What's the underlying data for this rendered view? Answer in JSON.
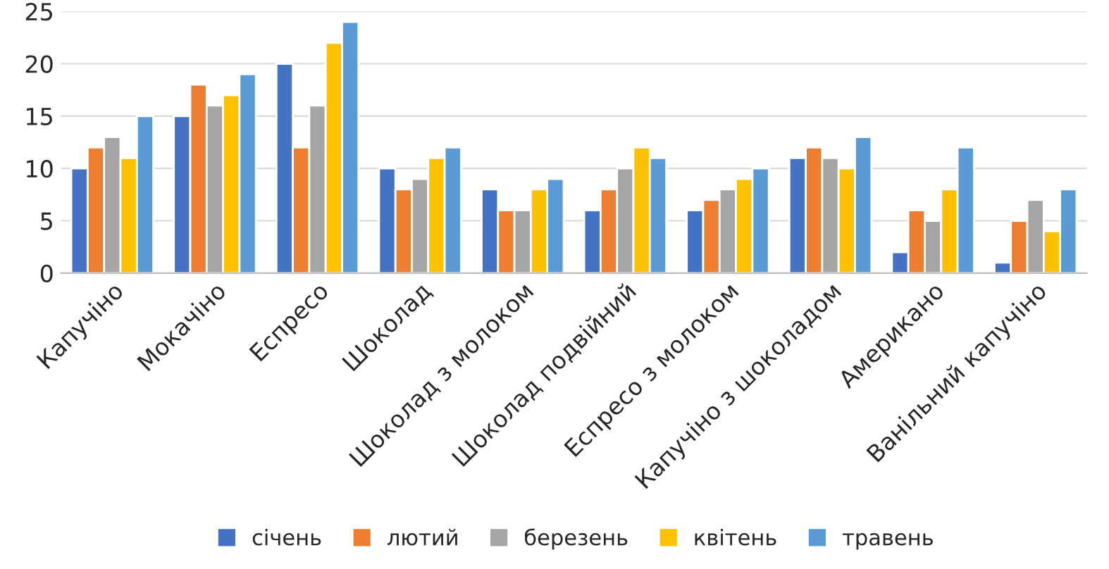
{
  "chart_data": {
    "type": "bar",
    "categories": [
      "Капучіно",
      "Мокачіно",
      "Еспресо",
      "Шоколад",
      "Шоколад з молоком",
      "Шоколад подвійний",
      "Еспресо з молоком",
      "Капучіно з шоколадом",
      "Американо",
      "Ванільний капучіно"
    ],
    "series": [
      {
        "name": "січень",
        "color": "#4472c4",
        "values": [
          10,
          15,
          20,
          10,
          8,
          6,
          6,
          11,
          2,
          1
        ]
      },
      {
        "name": "лютий",
        "color": "#ed7d31",
        "values": [
          12,
          18,
          12,
          8,
          6,
          8,
          7,
          12,
          6,
          5
        ]
      },
      {
        "name": "березень",
        "color": "#a5a5a5",
        "values": [
          13,
          16,
          16,
          9,
          6,
          10,
          8,
          11,
          5,
          7
        ]
      },
      {
        "name": "квітень",
        "color": "#ffc000",
        "values": [
          11,
          17,
          22,
          11,
          8,
          12,
          9,
          10,
          8,
          4
        ]
      },
      {
        "name": "травень",
        "color": "#5b9bd5",
        "values": [
          15,
          19,
          24,
          12,
          9,
          11,
          10,
          13,
          12,
          8
        ]
      }
    ],
    "ylim": [
      0,
      25
    ],
    "yticks": [
      0,
      5,
      10,
      15,
      20,
      25
    ],
    "grid": "y",
    "legend": "bottom"
  }
}
